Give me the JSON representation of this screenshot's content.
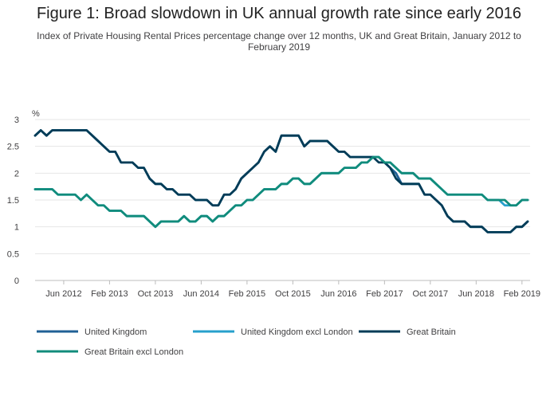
{
  "chart_data": {
    "type": "line",
    "title": "Figure 1: Broad slowdown in UK annual growth rate since early 2016",
    "subtitle": "Index of Private Housing Rental Prices percentage change over 12 months, UK and Great Britain, January 2012 to February 2019",
    "ylabel": "%",
    "ylim": [
      0,
      3
    ],
    "y_ticks": [
      "0",
      "0.5",
      "1",
      "1.5",
      "2",
      "2.5",
      "3"
    ],
    "x_ticks": [
      {
        "label": "Jun 2012",
        "index": 5
      },
      {
        "label": "Feb 2013",
        "index": 13
      },
      {
        "label": "Oct 2013",
        "index": 21
      },
      {
        "label": "Jun 2014",
        "index": 29
      },
      {
        "label": "Feb 2015",
        "index": 37
      },
      {
        "label": "Oct 2015",
        "index": 45
      },
      {
        "label": "Jun 2016",
        "index": 53
      },
      {
        "label": "Feb 2017",
        "index": 61
      },
      {
        "label": "Oct 2017",
        "index": 69
      },
      {
        "label": "Jun 2018",
        "index": 77
      },
      {
        "label": "Feb 2019",
        "index": 85
      }
    ],
    "x_start": "Jan 2012",
    "x_end": "Feb 2019",
    "grid": true,
    "legend_position": "bottom",
    "series": [
      {
        "name": "United Kingdom",
        "color": "#206095",
        "values": [
          2.7,
          2.8,
          2.7,
          2.8,
          2.8,
          2.8,
          2.8,
          2.8,
          2.8,
          2.8,
          2.7,
          2.6,
          2.5,
          2.4,
          2.4,
          2.2,
          2.2,
          2.2,
          2.1,
          2.1,
          1.9,
          1.8,
          1.8,
          1.7,
          1.7,
          1.6,
          1.6,
          1.6,
          1.5,
          1.5,
          1.5,
          1.4,
          1.4,
          1.6,
          1.6,
          1.7,
          1.9,
          2.0,
          2.1,
          2.2,
          2.4,
          2.5,
          2.4,
          2.7,
          2.7,
          2.7,
          2.7,
          2.5,
          2.6,
          2.6,
          2.6,
          2.6,
          2.5,
          2.4,
          2.4,
          2.3,
          2.3,
          2.3,
          2.3,
          2.3,
          2.3,
          2.2,
          2.1,
          2.0,
          1.8,
          1.8,
          1.8,
          1.8,
          1.6,
          1.6,
          1.5,
          1.4,
          1.2,
          1.1,
          1.1,
          1.1,
          1.0,
          1.0,
          1.0,
          0.9,
          0.9,
          0.9,
          0.9,
          0.9,
          1.0,
          1.0,
          1.1
        ]
      },
      {
        "name": "United Kingdom excl London",
        "color": "#27a0cc",
        "values": [
          1.7,
          1.7,
          1.7,
          1.7,
          1.6,
          1.6,
          1.6,
          1.6,
          1.5,
          1.6,
          1.5,
          1.4,
          1.4,
          1.3,
          1.3,
          1.3,
          1.2,
          1.2,
          1.2,
          1.2,
          1.1,
          1.0,
          1.1,
          1.1,
          1.1,
          1.1,
          1.2,
          1.1,
          1.1,
          1.2,
          1.2,
          1.1,
          1.2,
          1.2,
          1.3,
          1.4,
          1.4,
          1.5,
          1.5,
          1.6,
          1.7,
          1.7,
          1.7,
          1.8,
          1.8,
          1.9,
          1.9,
          1.8,
          1.8,
          1.9,
          2.0,
          2.0,
          2.0,
          2.0,
          2.1,
          2.1,
          2.1,
          2.2,
          2.2,
          2.3,
          2.3,
          2.2,
          2.2,
          2.1,
          2.0,
          2.0,
          2.0,
          1.9,
          1.9,
          1.9,
          1.8,
          1.7,
          1.6,
          1.6,
          1.6,
          1.6,
          1.6,
          1.6,
          1.6,
          1.5,
          1.5,
          1.5,
          1.4,
          1.4,
          1.4,
          1.5,
          1.5
        ]
      },
      {
        "name": "Great Britain",
        "color": "#003c57",
        "values": [
          2.7,
          2.8,
          2.7,
          2.8,
          2.8,
          2.8,
          2.8,
          2.8,
          2.8,
          2.8,
          2.7,
          2.6,
          2.5,
          2.4,
          2.4,
          2.2,
          2.2,
          2.2,
          2.1,
          2.1,
          1.9,
          1.8,
          1.8,
          1.7,
          1.7,
          1.6,
          1.6,
          1.6,
          1.5,
          1.5,
          1.5,
          1.4,
          1.4,
          1.6,
          1.6,
          1.7,
          1.9,
          2.0,
          2.1,
          2.2,
          2.4,
          2.5,
          2.4,
          2.7,
          2.7,
          2.7,
          2.7,
          2.5,
          2.6,
          2.6,
          2.6,
          2.6,
          2.5,
          2.4,
          2.4,
          2.3,
          2.3,
          2.3,
          2.3,
          2.3,
          2.2,
          2.2,
          2.1,
          1.9,
          1.8,
          1.8,
          1.8,
          1.8,
          1.6,
          1.6,
          1.5,
          1.4,
          1.2,
          1.1,
          1.1,
          1.1,
          1.0,
          1.0,
          1.0,
          0.9,
          0.9,
          0.9,
          0.9,
          0.9,
          1.0,
          1.0,
          1.1
        ]
      },
      {
        "name": "Great Britain excl London",
        "color": "#118c7b",
        "values": [
          1.7,
          1.7,
          1.7,
          1.7,
          1.6,
          1.6,
          1.6,
          1.6,
          1.5,
          1.6,
          1.5,
          1.4,
          1.4,
          1.3,
          1.3,
          1.3,
          1.2,
          1.2,
          1.2,
          1.2,
          1.1,
          1.0,
          1.1,
          1.1,
          1.1,
          1.1,
          1.2,
          1.1,
          1.1,
          1.2,
          1.2,
          1.1,
          1.2,
          1.2,
          1.3,
          1.4,
          1.4,
          1.5,
          1.5,
          1.6,
          1.7,
          1.7,
          1.7,
          1.8,
          1.8,
          1.9,
          1.9,
          1.8,
          1.8,
          1.9,
          2.0,
          2.0,
          2.0,
          2.0,
          2.1,
          2.1,
          2.1,
          2.2,
          2.2,
          2.3,
          2.3,
          2.2,
          2.2,
          2.1,
          2.0,
          2.0,
          2.0,
          1.9,
          1.9,
          1.9,
          1.8,
          1.7,
          1.6,
          1.6,
          1.6,
          1.6,
          1.6,
          1.6,
          1.6,
          1.5,
          1.5,
          1.5,
          1.5,
          1.4,
          1.4,
          1.5,
          1.5
        ]
      }
    ]
  }
}
